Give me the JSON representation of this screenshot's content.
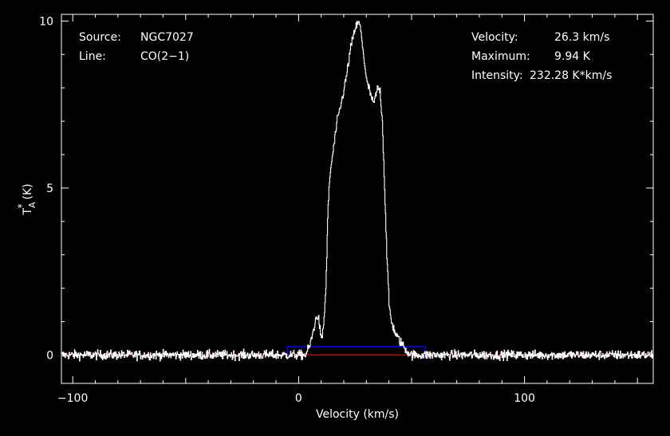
{
  "info": {
    "source_label": "Source:",
    "source_value": "NGC7027",
    "line_label": "Line:",
    "line_value": "CO(2−1)",
    "velocity_label": "Velocity:",
    "velocity_value": "26.3 km/s",
    "maximum_label": "Maximum:",
    "maximum_value": "9.94 K",
    "intensity_label": "Intensity:",
    "intensity_value": "232.28 K*km/s"
  },
  "colors": {
    "background": "#000000",
    "spectrum": "#ffffff",
    "baseline": "#ff0000",
    "window": "#0000ff",
    "text": "#ffffff"
  },
  "chart_data": {
    "type": "line",
    "title": "",
    "xlabel": "Velocity (km/s)",
    "ylabel_main": "T",
    "ylabel_sup": "*",
    "ylabel_sub": "A",
    "ylabel_unit": "(K)",
    "xlim": [
      -105,
      157
    ],
    "ylim": [
      -0.85,
      10.2
    ],
    "x_ticks": [
      -100,
      0,
      100
    ],
    "x_tick_labels": [
      "−100",
      "0",
      "100"
    ],
    "y_ticks": [
      0,
      5,
      10
    ],
    "y_tick_labels": [
      "0",
      "5",
      "10"
    ],
    "grid": false,
    "noise_rms": 0.07,
    "series": [
      {
        "role": "spectrum",
        "x": [
          -105,
          3,
          5,
          7,
          8,
          9,
          10,
          11,
          12,
          13,
          14,
          15,
          17,
          19,
          21,
          23,
          25,
          26.3,
          27,
          28,
          29,
          30,
          31,
          33,
          35,
          36,
          37,
          38,
          39,
          40,
          41,
          42,
          43,
          45,
          47,
          48,
          50,
          157
        ],
        "values": [
          0,
          0,
          0.3,
          0.9,
          1.2,
          1.0,
          0.4,
          0.9,
          2.0,
          4.5,
          5.5,
          6.0,
          7.0,
          7.6,
          8.3,
          9.2,
          9.8,
          9.94,
          9.9,
          9.4,
          8.8,
          8.2,
          8.0,
          7.5,
          8.0,
          7.9,
          7.0,
          5.0,
          3.0,
          1.5,
          1.0,
          0.8,
          0.6,
          0.4,
          0.2,
          0.1,
          0,
          0
        ]
      },
      {
        "role": "baseline",
        "x": [
          -105,
          157
        ],
        "values": [
          0,
          0
        ]
      },
      {
        "role": "integration-window",
        "x": [
          -5,
          56
        ],
        "values": [
          0.25,
          0.25
        ]
      }
    ]
  }
}
